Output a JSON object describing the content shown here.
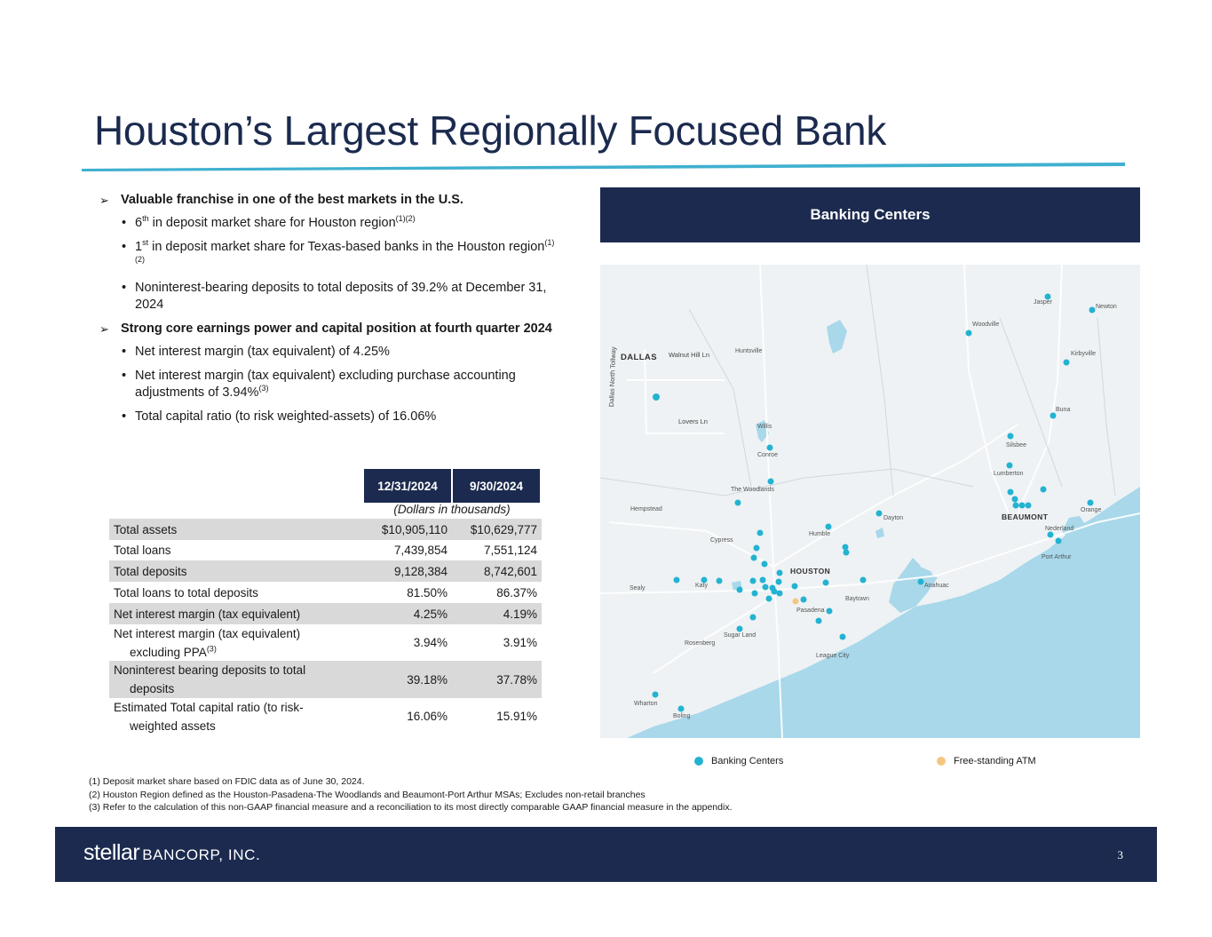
{
  "title": "Houston’s Largest Regionally Focused Bank",
  "colors": {
    "navy": "#1b2a4e",
    "accent": "#3fb0cf",
    "atm": "#f5c77e",
    "water": "#a8d8ea"
  },
  "bullets": {
    "group1": {
      "heading": "Valuable franchise in one of the best markets in the U.S.",
      "items": [
        {
          "pre": "6",
          "sup": "th",
          "text": " in deposit market share for Houston region",
          "ref": "(1)(2)"
        },
        {
          "pre": "1",
          "sup": "st",
          "text": " in deposit market share for Texas-based banks in the Houston region",
          "ref": "(1)(2)"
        },
        {
          "text": "Noninterest-bearing deposits to total deposits of 39.2% at December 31, 2024"
        }
      ]
    },
    "group2": {
      "heading": "Strong core earnings power and capital position at fourth quarter 2024",
      "items": [
        {
          "text": "Net interest margin (tax equivalent) of 4.25%"
        },
        {
          "text": "Net interest margin (tax equivalent) excluding purchase accounting adjustments of 3.94%",
          "ref": "(3)"
        },
        {
          "text": "Total capital ratio (to risk weighted-assets) of 16.06%"
        }
      ]
    }
  },
  "table": {
    "columns": [
      "12/31/2024",
      "9/30/2024"
    ],
    "units": "(Dollars in thousands)",
    "rows": [
      {
        "label": "Total assets",
        "v1": "$10,905,110",
        "v2": "$10,629,777"
      },
      {
        "label": "Total loans",
        "v1": "7,439,854",
        "v2": "7,551,124"
      },
      {
        "label": "Total deposits",
        "v1": "9,128,384",
        "v2": "8,742,601"
      },
      {
        "label": "Total loans to total deposits",
        "v1": "81.50%",
        "v2": "86.37%"
      },
      {
        "label": "Net interest margin (tax equivalent)",
        "v1": "4.25%",
        "v2": "4.19%"
      },
      {
        "label": "Net interest margin (tax equivalent)",
        "label2": "excluding PPA",
        "ref": "(3)",
        "v1": "3.94%",
        "v2": "3.91%"
      },
      {
        "label": "Noninterest bearing deposits to total",
        "label2": "deposits",
        "v1": "39.18%",
        "v2": "37.78%"
      },
      {
        "label": "Estimated Total capital ratio (to risk-",
        "label2": "weighted assets",
        "v1": "16.06%",
        "v2": "15.91%"
      }
    ]
  },
  "map": {
    "header": "Banking Centers",
    "places": {
      "dallas": "DALLAS",
      "walnut_hill": "Walnut Hill Ln",
      "lovers": "Lovers Ln",
      "tollway": "Dallas North Tollway",
      "huntsville": "Huntsville",
      "willis": "Willis",
      "conroe": "Conroe",
      "woodlands": "The Woodlands",
      "hempstead": "Hempstead",
      "cypress": "Cypress",
      "humble": "Humble",
      "dayton": "Dayton",
      "houston": "HOUSTON",
      "sealy": "Sealy",
      "katy": "Katy",
      "pasadena": "Pasadena",
      "baytown": "Baytown",
      "anahuac": "Anahuac",
      "sugar_land": "Sugar Land",
      "rosenberg": "Rosenberg",
      "league_city": "League City",
      "wharton": "Wharton",
      "boling": "Boling",
      "woodville": "Woodville",
      "jasper": "Jasper",
      "newton": "Newton",
      "kirbyville": "Kirbyville",
      "buna": "Buna",
      "silsbee": "Silsbee",
      "lumberton": "Lumberton",
      "beaumont": "BEAUMONT",
      "nederland": "Nederland",
      "orange": "Orange",
      "port_arthur": "Port Arthur"
    },
    "legend": {
      "banking": "Banking Centers",
      "atm": "Free-standing ATM"
    }
  },
  "footnotes": [
    "(1) Deposit market share based on FDIC data as of June 30, 2024.",
    "(2) Houston Region defined as the Houston-Pasadena-The Woodlands and Beaumont-Port Arthur MSAs; Excludes non-retail branches",
    "(3) Refer to the calculation of this non-GAAP financial measure and a reconciliation to its most directly comparable GAAP financial measure in the appendix."
  ],
  "footer": {
    "logo_word": "stellar",
    "logo_rest": "BANCORP, INC.",
    "page": "3"
  }
}
